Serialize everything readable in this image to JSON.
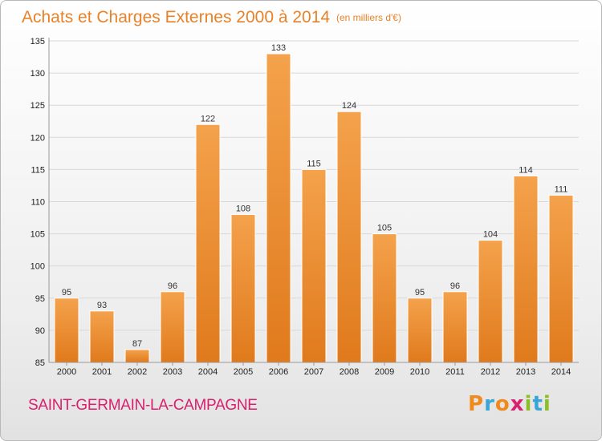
{
  "title": "Achats et Charges Externes 2000 à 2014",
  "unit": "(en milliers d'€)",
  "location": "SAINT-GERMAIN-LA-CAMPAGNE",
  "logo": {
    "text": "Proxiti",
    "letters": [
      {
        "ch": "P",
        "color": "#f08a1c"
      },
      {
        "ch": "r",
        "color": "#3aa6d8"
      },
      {
        "ch": "o",
        "color": "#f08a1c"
      },
      {
        "ch": "x",
        "color": "#d8206e"
      },
      {
        "ch": "i",
        "color": "#8cbf26"
      },
      {
        "ch": "t",
        "color": "#3aa6d8"
      },
      {
        "ch": "i",
        "color": "#8cbf26"
      }
    ]
  },
  "colors": {
    "bar_top": "#f4a24c",
    "bar_bottom": "#e07a1c",
    "bar_stroke": "#ffffff",
    "grid": "#d8d8d8",
    "axis": "#999999"
  },
  "chart_data": {
    "type": "bar",
    "categories": [
      "2000",
      "2001",
      "2002",
      "2003",
      "2004",
      "2005",
      "2006",
      "2007",
      "2008",
      "2009",
      "2010",
      "2011",
      "2012",
      "2013",
      "2014"
    ],
    "values": [
      95,
      93,
      87,
      96,
      122,
      108,
      133,
      115,
      124,
      105,
      95,
      96,
      104,
      114,
      111
    ],
    "ylim": [
      85,
      135
    ],
    "yticks": [
      85,
      90,
      95,
      100,
      105,
      110,
      115,
      120,
      125,
      130,
      135
    ],
    "grid": true,
    "legend": "none"
  }
}
